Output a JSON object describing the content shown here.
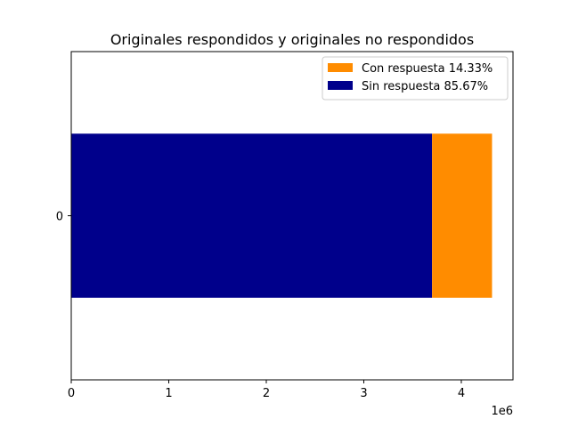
{
  "chart_data": {
    "type": "bar",
    "orientation": "horizontal",
    "stacked": true,
    "title": "Originales respondidos y originales no respondidos",
    "categories": [
      "0"
    ],
    "series": [
      {
        "name": "Sin respuesta 85.67%",
        "values": [
          3700000
        ],
        "color": "#00008b"
      },
      {
        "name": "Con respuesta 14.33%",
        "values": [
          615000
        ],
        "color": "#ff8c00"
      }
    ],
    "xlim": [
      0,
      4530000
    ],
    "xticks": [
      0,
      1000000,
      2000000,
      3000000,
      4000000
    ],
    "xtick_labels": [
      "0",
      "1",
      "2",
      "3",
      "4"
    ],
    "x_offset_label": "1e6",
    "grid": false,
    "legend_position": "top-right",
    "legend_order": [
      "Con respuesta 14.33%",
      "Sin respuesta 85.67%"
    ]
  }
}
